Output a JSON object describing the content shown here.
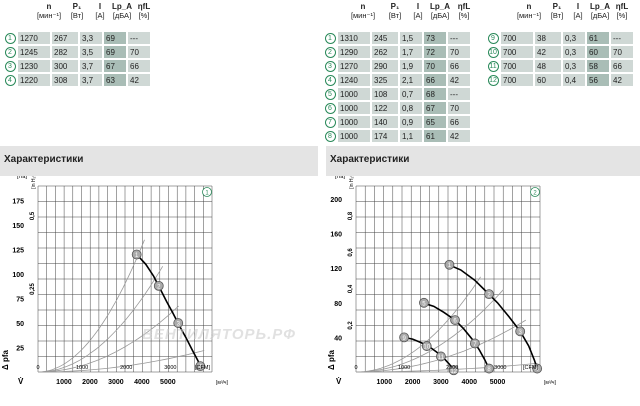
{
  "header": {
    "n": "n",
    "n_unit": "[мин⁻¹]",
    "p": "P₁",
    "p_unit": "[Вт]",
    "i": "I",
    "i_unit": "[A]",
    "lpa": "Lp_A",
    "lpa_unit": "[дБА]",
    "eta": "ηfL",
    "eta_unit": "[%]"
  },
  "left_table": [
    {
      "id": "1",
      "n": "1270",
      "p": "267",
      "i": "3,3",
      "lpa": "69",
      "eta": "---"
    },
    {
      "id": "2",
      "n": "1245",
      "p": "282",
      "i": "3,5",
      "lpa": "69",
      "eta": "70"
    },
    {
      "id": "3",
      "n": "1230",
      "p": "300",
      "i": "3,7",
      "lpa": "67",
      "eta": "66"
    },
    {
      "id": "4",
      "n": "1220",
      "p": "308",
      "i": "3,7",
      "lpa": "63",
      "eta": "42"
    }
  ],
  "mid_table": [
    {
      "id": "1",
      "n": "1310",
      "p": "245",
      "i": "1,5",
      "lpa": "73",
      "eta": "---"
    },
    {
      "id": "2",
      "n": "1290",
      "p": "262",
      "i": "1,7",
      "lpa": "72",
      "eta": "70"
    },
    {
      "id": "3",
      "n": "1270",
      "p": "290",
      "i": "1,9",
      "lpa": "70",
      "eta": "66"
    },
    {
      "id": "4",
      "n": "1240",
      "p": "325",
      "i": "2,1",
      "lpa": "66",
      "eta": "42"
    },
    {
      "id": "5",
      "n": "1000",
      "p": "108",
      "i": "0,7",
      "lpa": "68",
      "eta": "---"
    },
    {
      "id": "6",
      "n": "1000",
      "p": "122",
      "i": "0,8",
      "lpa": "67",
      "eta": "70"
    },
    {
      "id": "7",
      "n": "1000",
      "p": "140",
      "i": "0,9",
      "lpa": "65",
      "eta": "66"
    },
    {
      "id": "8",
      "n": "1000",
      "p": "174",
      "i": "1,1",
      "lpa": "61",
      "eta": "42"
    }
  ],
  "right_table": [
    {
      "id": "9",
      "n": "700",
      "p": "38",
      "i": "0,3",
      "lpa": "61",
      "eta": "---"
    },
    {
      "id": "10",
      "n": "700",
      "p": "42",
      "i": "0,3",
      "lpa": "60",
      "eta": "70"
    },
    {
      "id": "11",
      "n": "700",
      "p": "48",
      "i": "0,3",
      "lpa": "58",
      "eta": "66"
    },
    {
      "id": "12",
      "n": "700",
      "p": "60",
      "i": "0,4",
      "lpa": "56",
      "eta": "42"
    }
  ],
  "left_variant_badge": "1",
  "right_variant_badge": "2",
  "section_title": "Характеристики",
  "chart_data": [
    {
      "type": "line",
      "badge": "1",
      "y_unit": "[Па]",
      "y_unit2": "[in H₂O]",
      "yticks": [
        "175",
        "150",
        "125",
        "100",
        "75",
        "50",
        "25"
      ],
      "yticks2": [
        "0,5",
        "0,25"
      ],
      "xticks_cfm": [
        "0",
        "1000",
        "2000",
        "3000"
      ],
      "xticks_m3h": [
        "1000",
        "2000",
        "3000",
        "4000",
        "5000"
      ],
      "x_unit_cfm": "[CFM]",
      "x_unit_m3h": "[м³/ч]",
      "ylabel": "Δ pfa",
      "xlabel": "V̇",
      "ylim": [
        0,
        190
      ],
      "xlim": [
        0,
        6700
      ],
      "curve": [
        [
          3800,
          120
        ],
        [
          4150,
          110
        ],
        [
          4450,
          98
        ],
        [
          4700,
          85
        ],
        [
          4950,
          72
        ],
        [
          5200,
          60
        ],
        [
          5450,
          47
        ],
        [
          5700,
          35
        ],
        [
          5950,
          22
        ],
        [
          6150,
          12
        ],
        [
          6300,
          4
        ]
      ],
      "points": [
        {
          "id": "1",
          "x": 3800,
          "y": 120
        },
        {
          "id": "2",
          "x": 4650,
          "y": 88
        },
        {
          "id": "3",
          "x": 5400,
          "y": 50
        },
        {
          "id": "4",
          "x": 6250,
          "y": 6
        }
      ],
      "systems": [
        [
          4100,
          135
        ],
        [
          4800,
          108
        ],
        [
          5600,
          72
        ],
        [
          6400,
          22
        ]
      ]
    },
    {
      "type": "line",
      "badge": "2",
      "y_unit": "[Па]",
      "y_unit2": "[in H₂O]",
      "yticks": [
        "200",
        "160",
        "120",
        "80",
        "40"
      ],
      "yticks2": [
        "0,8",
        "0,6",
        "0,4",
        "0,2"
      ],
      "xticks_cfm": [
        "0",
        "1000",
        "2000",
        "3000"
      ],
      "xticks_m3h": [
        "1000",
        "2000",
        "3000",
        "4000",
        "5000"
      ],
      "x_unit_cfm": "[CFM]",
      "x_unit_m3h": "[м³/ч]",
      "ylabel": "Δ pfa",
      "xlabel": "V̇",
      "ylim": [
        0,
        215
      ],
      "xlim": [
        0,
        6500
      ],
      "curves": [
        [
          [
            3200,
            125
          ],
          [
            3700,
            118
          ],
          [
            4200,
            106
          ],
          [
            4600,
            93
          ],
          [
            5000,
            80
          ],
          [
            5400,
            64
          ],
          [
            5800,
            47
          ],
          [
            6100,
            30
          ],
          [
            6300,
            14
          ],
          [
            6400,
            4
          ]
        ],
        [
          [
            2350,
            80
          ],
          [
            2750,
            76
          ],
          [
            3100,
            69
          ],
          [
            3500,
            60
          ],
          [
            3800,
            50
          ],
          [
            4100,
            38
          ],
          [
            4350,
            26
          ],
          [
            4550,
            14
          ],
          [
            4700,
            4
          ]
        ],
        [
          [
            1700,
            40
          ],
          [
            2000,
            38
          ],
          [
            2300,
            34
          ],
          [
            2600,
            29
          ],
          [
            2850,
            23
          ],
          [
            3100,
            16
          ],
          [
            3300,
            9
          ],
          [
            3450,
            2
          ]
        ]
      ],
      "points": [
        {
          "id": "1",
          "x": 3300,
          "y": 124
        },
        {
          "id": "5",
          "x": 2400,
          "y": 80
        },
        {
          "id": "9",
          "x": 1700,
          "y": 40
        },
        {
          "id": "2",
          "x": 4700,
          "y": 90
        },
        {
          "id": "6",
          "x": 3500,
          "y": 60
        },
        {
          "id": "10",
          "x": 2500,
          "y": 30
        },
        {
          "id": "3",
          "x": 5800,
          "y": 47
        },
        {
          "id": "7",
          "x": 4200,
          "y": 33
        },
        {
          "id": "11",
          "x": 3000,
          "y": 18
        },
        {
          "id": "4",
          "x": 6400,
          "y": 4
        },
        {
          "id": "8",
          "x": 4700,
          "y": 4
        },
        {
          "id": "12",
          "x": 3450,
          "y": 2
        }
      ],
      "systems": [
        [
          4400,
          110
        ],
        [
          5200,
          95
        ],
        [
          6000,
          60
        ],
        [
          6400,
          10
        ]
      ]
    }
  ],
  "watermark": "ВЕНТИЛЯТОРЬ.РФ"
}
